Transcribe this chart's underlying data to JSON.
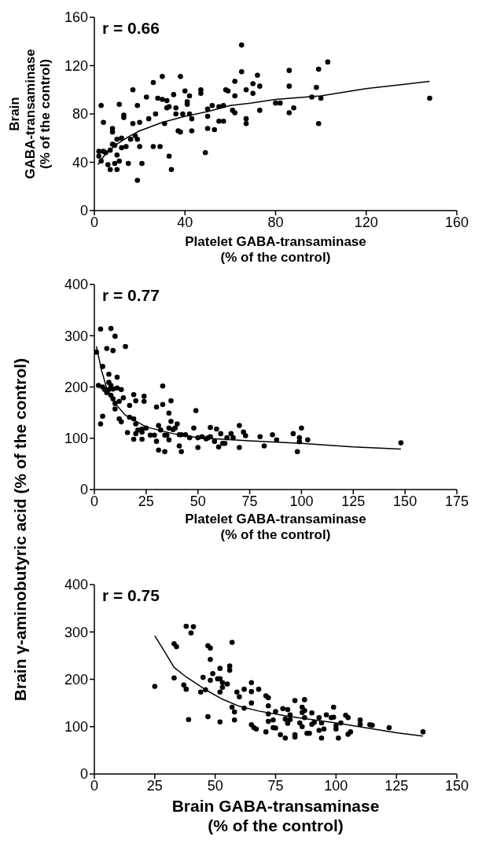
{
  "chart_data": [
    {
      "type": "scatter",
      "xlabel": "Platelet GABA-transaminase\n(% of the control)",
      "ylabel": "Brain\nGABA-transaminase\n(% of the control)",
      "annotations": [
        "r = 0.66"
      ],
      "xlim": [
        0,
        160
      ],
      "ylim": [
        0,
        160
      ],
      "xticks": [
        0,
        40,
        80,
        120,
        160
      ],
      "yticks": [
        0,
        40,
        80,
        120,
        160
      ],
      "series": [
        {
          "marker": "circle",
          "color": "#000000",
          "x": [
            3,
            4,
            2,
            2,
            3,
            4,
            5,
            6,
            7,
            7,
            8,
            8,
            8,
            9,
            9,
            10,
            10,
            10,
            11,
            11,
            12,
            12,
            13,
            13,
            14,
            15,
            16,
            17,
            17,
            18,
            19,
            19,
            19,
            20,
            20,
            21,
            23,
            24,
            26,
            26,
            27,
            28,
            29,
            30,
            30,
            31,
            32,
            32,
            33,
            33,
            34,
            35,
            36,
            36,
            37,
            38,
            38,
            39,
            40,
            41,
            41,
            42,
            42,
            43,
            43,
            47,
            47,
            49,
            50,
            50,
            52,
            50,
            53,
            55,
            55,
            57,
            57,
            58,
            59,
            61,
            62,
            62,
            62,
            65,
            65,
            67,
            67,
            67,
            72,
            70,
            70,
            73,
            73,
            80,
            82,
            86,
            86,
            86,
            88,
            96,
            98,
            99,
            100,
            99,
            103,
            148
          ],
          "values": [
            87,
            73,
            49,
            45,
            41,
            49,
            48,
            38,
            34,
            50,
            55,
            65,
            68,
            39,
            54,
            46,
            34,
            59,
            88,
            41,
            52,
            60,
            77,
            79,
            53,
            39,
            59,
            100,
            72,
            62,
            25,
            87,
            59,
            73,
            53,
            39,
            94,
            76,
            53,
            106,
            80,
            93,
            53,
            111,
            92,
            72,
            85,
            91,
            86,
            45,
            34,
            96,
            80,
            85,
            66,
            65,
            111,
            80,
            99,
            90,
            88,
            80,
            95,
            66,
            76,
            100,
            97,
            48,
            84,
            78,
            87,
            68,
            67,
            74,
            86,
            87,
            74,
            100,
            99,
            83,
            81,
            95,
            107,
            137,
            115,
            76,
            72,
            100,
            112,
            105,
            97,
            103,
            83,
            89,
            89,
            116,
            103,
            81,
            85,
            94,
            102,
            117,
            93,
            72,
            123,
            93
          ]
        },
        {
          "type": "line",
          "color": "#000000",
          "x": [
            1.5,
            5,
            10,
            15,
            20,
            30,
            40,
            50,
            60,
            69,
            80,
            100,
            120,
            148
          ],
          "values": [
            38,
            47,
            55,
            61,
            66,
            73,
            78,
            82,
            87,
            89,
            92,
            95,
            101,
            107
          ]
        }
      ]
    },
    {
      "type": "scatter",
      "xlabel": "Platelet GABA-transaminase\n(% of the control)",
      "ylabel": "Brain γ-aminobutyric acid (% of the control)",
      "annotations": [
        "r = 0.77"
      ],
      "xlim": [
        0,
        175
      ],
      "ylim": [
        0,
        400
      ],
      "xticks": [
        0,
        25,
        50,
        75,
        100,
        125,
        150,
        175
      ],
      "yticks": [
        0,
        100,
        200,
        300,
        400
      ],
      "series": [
        {
          "marker": "circle",
          "color": "#000000",
          "x": [
            1,
            3,
            2,
            3,
            4,
            4,
            4,
            5,
            6,
            6,
            7,
            7,
            8,
            7,
            8,
            8,
            9,
            9,
            9,
            10,
            10,
            10,
            11,
            11,
            12,
            12,
            13,
            13,
            14,
            15,
            16,
            17,
            17,
            19,
            19,
            19,
            20,
            20,
            20,
            21,
            23,
            23,
            24,
            24,
            23,
            25,
            27,
            29,
            30,
            30,
            31,
            31,
            32,
            33,
            33,
            34,
            34,
            35,
            36,
            36,
            36,
            37,
            37,
            38,
            39,
            40,
            41,
            41,
            42,
            42,
            44,
            46,
            48,
            49,
            50,
            50,
            52,
            54,
            55,
            56,
            56,
            58,
            59,
            60,
            61,
            62,
            63,
            64,
            66,
            67,
            70,
            70,
            72,
            73,
            80,
            82,
            86,
            88,
            96,
            98,
            99,
            99,
            100,
            103,
            148
          ],
          "values": [
            268,
            313,
            203,
            128,
            240,
            143,
            200,
            195,
            189,
            275,
            225,
            195,
            314,
            209,
            184,
            203,
            196,
            271,
            177,
            168,
            299,
            157,
            219,
            198,
            172,
            138,
            132,
            195,
            179,
            279,
            111,
            164,
            141,
            185,
            138,
            98,
            173,
            128,
            109,
            116,
            118,
            98,
            182,
            172,
            112,
            120,
            106,
            106,
            161,
            94,
            77,
            125,
            116,
            166,
            202,
            106,
            74,
            106,
            149,
            120,
            97,
            173,
            133,
            117,
            120,
            128,
            107,
            85,
            107,
            74,
            107,
            101,
            120,
            154,
            82,
            101,
            103,
            99,
            101,
            121,
            103,
            94,
            118,
            83,
            109,
            90,
            90,
            101,
            109,
            101,
            125,
            82,
            112,
            105,
            103,
            85,
            107,
            97,
            109,
            74,
            101,
            93,
            120,
            97,
            91
          ]
        },
        {
          "type": "line",
          "color": "#000000",
          "x": [
            1,
            3.5,
            6,
            10,
            15,
            25,
            38,
            50,
            75,
            100,
            125,
            148
          ],
          "values": [
            279,
            232,
            197,
            168,
            145,
            122,
            109,
            101,
            95,
            90,
            83,
            79
          ]
        }
      ]
    },
    {
      "type": "scatter",
      "xlabel": "Brain GABA-transaminase\n(% of the control)",
      "annotations": [
        "r = 0.75"
      ],
      "xlim": [
        0,
        150
      ],
      "ylim": [
        0,
        400
      ],
      "xticks": [
        0,
        25,
        50,
        75,
        100,
        125,
        150
      ],
      "yticks": [
        0,
        100,
        200,
        300,
        400
      ],
      "series": [
        {
          "marker": "circle",
          "color": "#000000",
          "x": [
            25,
            33,
            33,
            34,
            37,
            38,
            39,
            38,
            41,
            40,
            44,
            45,
            46,
            47,
            48,
            47,
            48,
            48,
            49,
            51,
            52,
            52,
            52,
            52,
            53,
            53,
            55,
            56,
            56,
            57,
            57,
            58,
            58,
            59,
            60,
            62,
            62,
            65,
            65,
            65,
            65,
            66,
            67,
            68,
            71,
            72,
            72,
            72,
            72,
            71,
            74,
            74,
            75,
            75,
            77,
            78,
            79,
            79,
            80,
            81,
            81,
            80,
            83,
            83,
            83,
            85,
            86,
            86,
            86,
            87,
            87,
            87,
            88,
            89,
            90,
            90,
            91,
            93,
            93,
            94,
            94,
            95,
            96,
            98,
            99,
            99,
            100,
            100,
            101,
            102,
            104,
            105,
            105,
            106,
            110,
            110,
            114,
            115,
            122,
            136
          ],
          "values": [
            185,
            203,
            275,
            269,
            188,
            179,
            115,
            312,
            311,
            298,
            173,
            204,
            178,
            271,
            266,
            121,
            198,
            242,
            212,
            201,
            201,
            173,
            110,
            223,
            193,
            183,
            190,
            228,
            219,
            278,
            141,
            131,
            114,
            173,
            163,
            139,
            179,
            193,
            174,
            150,
            104,
            98,
            95,
            179,
            165,
            161,
            144,
            127,
            111,
            89,
            98,
            114,
            97,
            132,
            83,
            138,
            76,
            116,
            136,
            125,
            115,
            107,
            155,
            83,
            78,
            108,
            141,
            130,
            100,
            157,
            134,
            119,
            86,
            86,
            129,
            105,
            109,
            119,
            92,
            76,
            108,
            95,
            125,
            119,
            141,
            120,
            102,
            95,
            76,
            108,
            124,
            119,
            84,
            89,
            114,
            105,
            104,
            103,
            98,
            89
          ]
        },
        {
          "type": "line",
          "color": "#000000",
          "x": [
            25,
            29,
            33,
            38,
            46,
            53,
            60,
            68,
            80,
            100,
            125,
            136
          ],
          "values": [
            292,
            259,
            225,
            205,
            178,
            158,
            143,
            133,
            122,
            108,
            87,
            80
          ]
        }
      ]
    }
  ]
}
